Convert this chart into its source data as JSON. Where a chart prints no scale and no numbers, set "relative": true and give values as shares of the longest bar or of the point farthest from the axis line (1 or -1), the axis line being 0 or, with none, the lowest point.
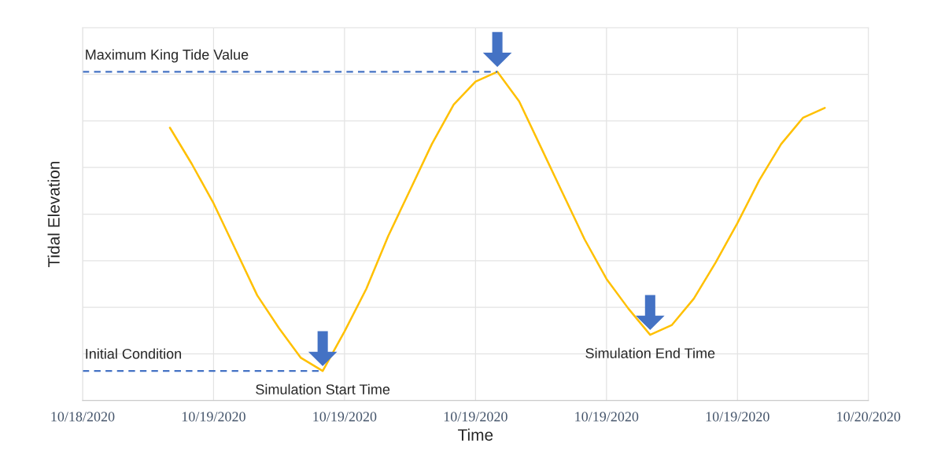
{
  "chart_data": {
    "type": "line",
    "relative": true,
    "xlabel": "Time",
    "ylabel": "Tidal Elevation",
    "categories": [
      "10/18/2020",
      null,
      null,
      null,
      null,
      null,
      "10/19/2020",
      null,
      null,
      null,
      null,
      null,
      "10/19/2020",
      null,
      null,
      null,
      null,
      null,
      "10/19/2020",
      null,
      null,
      null,
      null,
      null,
      "10/19/2020",
      null,
      null,
      null,
      null,
      null,
      "10/19/2020",
      null,
      null,
      null,
      null,
      null,
      "10/20/2020"
    ],
    "tick_labels": "x",
    "grid": true,
    "series": [
      {
        "color": "#ffc000",
        "values": [
          null,
          null,
          null,
          null,
          0.83,
          0.72,
          0.6,
          0.46,
          0.32,
          0.22,
          0.13,
          0.09,
          0.21,
          0.34,
          0.5,
          0.64,
          0.78,
          0.9,
          0.97,
          1.0,
          0.91,
          0.77,
          0.63,
          0.49,
          0.37,
          0.28,
          0.2,
          0.23,
          0.31,
          0.42,
          0.54,
          0.67,
          0.78,
          0.86,
          0.89,
          null,
          null
        ]
      }
    ],
    "ref_lines": [
      {
        "axis": "y",
        "value": 1.0,
        "label": "Maximum King Tide Value",
        "color": "#4472c4",
        "line_style": "dashed"
      },
      {
        "axis": "y",
        "value": 0.09,
        "label": "Initial Condition",
        "color": "#4472c4",
        "line_style": "dashed"
      }
    ],
    "annotations": [
      "Simulation Start Time",
      "Simulation End Time"
    ]
  }
}
